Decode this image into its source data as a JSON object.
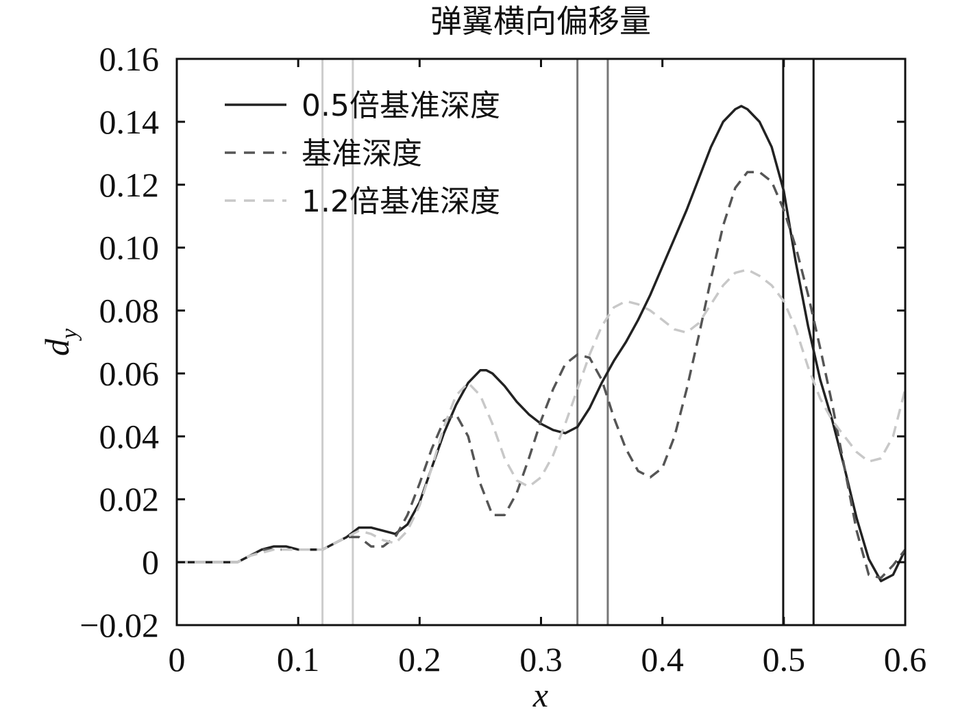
{
  "chart_data": {
    "type": "line",
    "title": "弹翼横向偏移量",
    "xlabel": "x",
    "ylabel_main": "d",
    "ylabel_sub": "y",
    "xlim": [
      0,
      0.6
    ],
    "ylim": [
      -0.02,
      0.16
    ],
    "x_ticks": [
      0,
      0.1,
      0.2,
      0.3,
      0.4,
      0.5,
      0.6
    ],
    "x_tick_labels": [
      "0",
      "0.1",
      "0.2",
      "0.3",
      "0.4",
      "0.5",
      "0.6"
    ],
    "y_ticks": [
      -0.02,
      0,
      0.02,
      0.04,
      0.06,
      0.08,
      0.1,
      0.12,
      0.14,
      0.16
    ],
    "y_tick_labels": [
      "−0.02",
      "0",
      "0.02",
      "0.04",
      "0.06",
      "0.08",
      "0.10",
      "0.12",
      "0.14",
      "0.16"
    ],
    "grid": false,
    "legend_position": "top-left",
    "series": [
      {
        "name": "0.5倍基准深度",
        "color": "#222222",
        "dash": "solid",
        "x": [
          0,
          0.05,
          0.06,
          0.07,
          0.08,
          0.09,
          0.1,
          0.11,
          0.12,
          0.13,
          0.14,
          0.15,
          0.16,
          0.17,
          0.18,
          0.19,
          0.2,
          0.21,
          0.22,
          0.23,
          0.24,
          0.25,
          0.255,
          0.26,
          0.27,
          0.28,
          0.29,
          0.3,
          0.31,
          0.32,
          0.33,
          0.34,
          0.35,
          0.36,
          0.37,
          0.38,
          0.39,
          0.4,
          0.41,
          0.42,
          0.43,
          0.44,
          0.45,
          0.46,
          0.465,
          0.47,
          0.48,
          0.49,
          0.5,
          0.51,
          0.52,
          0.53,
          0.54,
          0.55,
          0.56,
          0.57,
          0.58,
          0.59,
          0.6
        ],
        "y": [
          0,
          0,
          0.002,
          0.004,
          0.005,
          0.005,
          0.004,
          0.004,
          0.004,
          0.006,
          0.008,
          0.011,
          0.011,
          0.01,
          0.009,
          0.012,
          0.019,
          0.03,
          0.041,
          0.05,
          0.057,
          0.061,
          0.061,
          0.06,
          0.056,
          0.051,
          0.047,
          0.044,
          0.042,
          0.041,
          0.043,
          0.049,
          0.057,
          0.064,
          0.07,
          0.077,
          0.085,
          0.094,
          0.103,
          0.112,
          0.122,
          0.132,
          0.14,
          0.144,
          0.145,
          0.144,
          0.14,
          0.132,
          0.118,
          0.095,
          0.075,
          0.058,
          0.045,
          0.03,
          0.014,
          0.001,
          -0.006,
          -0.004,
          0.004
        ]
      },
      {
        "name": "基准深度",
        "color": "#555555",
        "dash": "dashed",
        "x": [
          0,
          0.05,
          0.06,
          0.07,
          0.08,
          0.09,
          0.1,
          0.11,
          0.12,
          0.13,
          0.14,
          0.15,
          0.16,
          0.17,
          0.18,
          0.19,
          0.2,
          0.21,
          0.22,
          0.23,
          0.24,
          0.25,
          0.26,
          0.27,
          0.28,
          0.29,
          0.3,
          0.31,
          0.32,
          0.33,
          0.34,
          0.35,
          0.36,
          0.37,
          0.38,
          0.39,
          0.4,
          0.41,
          0.42,
          0.43,
          0.44,
          0.45,
          0.46,
          0.47,
          0.48,
          0.49,
          0.5,
          0.51,
          0.52,
          0.53,
          0.54,
          0.55,
          0.56,
          0.57,
          0.58,
          0.59,
          0.6
        ],
        "y": [
          0,
          0,
          0.002,
          0.004,
          0.004,
          0.004,
          0.004,
          0.004,
          0.004,
          0.006,
          0.008,
          0.008,
          0.005,
          0.005,
          0.008,
          0.015,
          0.025,
          0.036,
          0.045,
          0.047,
          0.04,
          0.025,
          0.015,
          0.015,
          0.022,
          0.033,
          0.045,
          0.055,
          0.063,
          0.066,
          0.065,
          0.058,
          0.046,
          0.036,
          0.029,
          0.027,
          0.03,
          0.04,
          0.055,
          0.072,
          0.09,
          0.107,
          0.119,
          0.124,
          0.124,
          0.121,
          0.112,
          0.1,
          0.085,
          0.068,
          0.05,
          0.03,
          0.01,
          -0.004,
          -0.005,
          -0.001,
          0.004
        ]
      },
      {
        "name": "1.2倍基准深度",
        "color": "#c8c8c8",
        "dash": "dashed",
        "x": [
          0,
          0.05,
          0.06,
          0.07,
          0.08,
          0.09,
          0.1,
          0.11,
          0.12,
          0.13,
          0.14,
          0.15,
          0.16,
          0.17,
          0.18,
          0.19,
          0.2,
          0.21,
          0.22,
          0.23,
          0.24,
          0.25,
          0.26,
          0.27,
          0.28,
          0.29,
          0.3,
          0.31,
          0.32,
          0.33,
          0.34,
          0.35,
          0.36,
          0.37,
          0.38,
          0.39,
          0.4,
          0.41,
          0.42,
          0.43,
          0.44,
          0.45,
          0.46,
          0.47,
          0.48,
          0.49,
          0.5,
          0.51,
          0.52,
          0.53,
          0.54,
          0.55,
          0.56,
          0.57,
          0.58,
          0.59,
          0.6
        ],
        "y": [
          0,
          0,
          0.002,
          0.003,
          0.004,
          0.004,
          0.004,
          0.004,
          0.004,
          0.006,
          0.008,
          0.01,
          0.009,
          0.007,
          0.006,
          0.01,
          0.018,
          0.03,
          0.043,
          0.053,
          0.057,
          0.053,
          0.044,
          0.033,
          0.026,
          0.024,
          0.027,
          0.034,
          0.044,
          0.055,
          0.066,
          0.075,
          0.081,
          0.083,
          0.082,
          0.08,
          0.077,
          0.074,
          0.073,
          0.076,
          0.082,
          0.088,
          0.092,
          0.093,
          0.091,
          0.088,
          0.083,
          0.074,
          0.062,
          0.052,
          0.045,
          0.04,
          0.035,
          0.032,
          0.033,
          0.04,
          0.055
        ]
      }
    ],
    "vertical_markers": [
      {
        "x": 0.12,
        "color": "#cccccc"
      },
      {
        "x": 0.145,
        "color": "#cccccc"
      },
      {
        "x": 0.33,
        "color": "#777777"
      },
      {
        "x": 0.355,
        "color": "#777777"
      },
      {
        "x": 0.4995,
        "color": "#111111"
      },
      {
        "x": 0.5245,
        "color": "#111111"
      }
    ]
  }
}
